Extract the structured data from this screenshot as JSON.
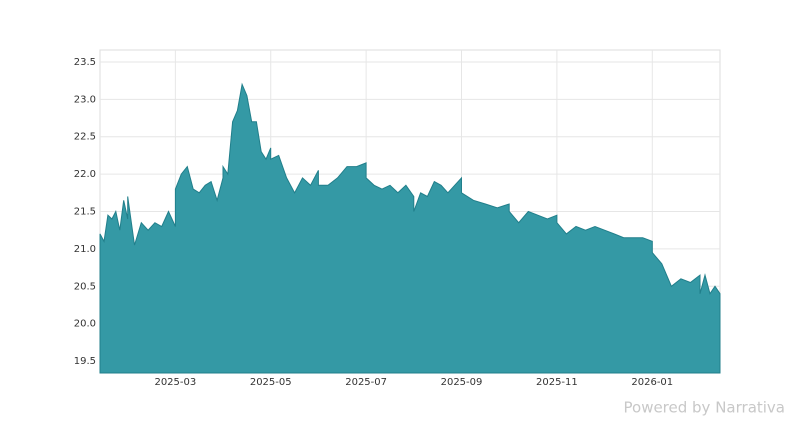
{
  "chart_data": {
    "type": "area",
    "x": [
      "2025-01",
      "2025-01",
      "2025-01",
      "2025-01",
      "2025-01",
      "2025-01",
      "2025-01",
      "2025-01",
      "2025-02",
      "2025-02",
      "2025-02",
      "2025-02",
      "2025-02",
      "2025-02",
      "2025-02",
      "2025-02",
      "2025-03",
      "2025-03",
      "2025-03",
      "2025-03",
      "2025-03",
      "2025-03",
      "2025-03",
      "2025-03",
      "2025-03",
      "2025-04",
      "2025-04",
      "2025-04",
      "2025-04",
      "2025-04",
      "2025-04",
      "2025-04",
      "2025-04",
      "2025-04",
      "2025-04",
      "2025-04",
      "2025-05",
      "2025-05",
      "2025-05",
      "2025-05",
      "2025-05",
      "2025-05",
      "2025-05",
      "2025-06",
      "2025-06",
      "2025-06",
      "2025-06",
      "2025-06",
      "2025-06",
      "2025-07",
      "2025-07",
      "2025-07",
      "2025-07",
      "2025-07",
      "2025-07",
      "2025-07",
      "2025-08",
      "2025-08",
      "2025-08",
      "2025-08",
      "2025-08",
      "2025-08",
      "2025-08",
      "2025-08",
      "2025-09",
      "2025-09",
      "2025-09",
      "2025-09",
      "2025-09",
      "2025-10",
      "2025-10",
      "2025-10",
      "2025-10",
      "2025-10",
      "2025-10",
      "2025-11",
      "2025-11",
      "2025-11",
      "2025-11",
      "2025-11",
      "2025-11",
      "2025-12",
      "2025-12",
      "2025-12",
      "2025-12",
      "2025-12",
      "2025-12",
      "2026-01",
      "2026-01",
      "2026-01",
      "2026-01",
      "2026-01",
      "2026-01",
      "2026-02",
      "2026-02",
      "2026-02",
      "2026-02",
      "2026-02"
    ],
    "series": [
      {
        "color": "#3499a5",
        "values": [
          21.2,
          21.1,
          21.45,
          21.4,
          21.5,
          21.25,
          21.65,
          21.4,
          21.7,
          21.05,
          21.35,
          21.25,
          21.35,
          21.3,
          21.5,
          21.3,
          21.8,
          22.0,
          22.1,
          21.8,
          21.75,
          21.85,
          21.9,
          21.65,
          21.95,
          22.1,
          22.0,
          22.7,
          22.85,
          23.2,
          23.05,
          22.7,
          22.7,
          22.3,
          22.2,
          22.35,
          22.2,
          22.25,
          21.95,
          21.75,
          21.95,
          21.85,
          22.05,
          21.85,
          21.85,
          21.95,
          22.1,
          22.1,
          22.15,
          21.95,
          21.85,
          21.8,
          21.85,
          21.75,
          21.85,
          21.7,
          21.5,
          21.75,
          21.7,
          21.9,
          21.85,
          21.75,
          21.85,
          21.95,
          21.75,
          21.65,
          21.6,
          21.55,
          21.6,
          21.5,
          21.35,
          21.5,
          21.45,
          21.4,
          21.45,
          21.35,
          21.2,
          21.3,
          21.25,
          21.3,
          21.25,
          21.25,
          21.2,
          21.15,
          21.15,
          21.15,
          21.1,
          20.95,
          20.8,
          20.5,
          20.6,
          20.55,
          20.65,
          20.4,
          20.65,
          20.4,
          20.5,
          20.4
        ]
      }
    ],
    "xlim": [
      "2025-01",
      "2026-02"
    ],
    "xticks": [
      "2025-03",
      "2025-05",
      "2025-07",
      "2025-09",
      "2025-11",
      "2026-01"
    ],
    "ylim": [
      19.34,
      23.66
    ],
    "yticks": [
      19.5,
      {
        "value": 20,
        "label": "20.0"
      },
      20.5,
      {
        "value": 21,
        "label": "21.0"
      },
      21.5,
      {
        "value": 22,
        "label": "22.0"
      },
      22.5,
      {
        "value": 23,
        "label": "23.0"
      },
      23.5
    ],
    "grid": true,
    "footer": "Powered by Narrativa"
  }
}
